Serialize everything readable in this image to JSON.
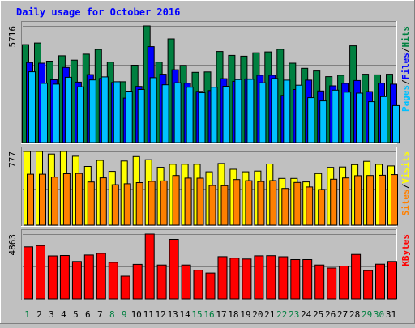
{
  "chart_data": [
    {
      "type": "bar",
      "title": "Daily usage for October 2016",
      "y_max_label": "5716",
      "y_max": 5716,
      "categories": [
        "1",
        "2",
        "3",
        "4",
        "5",
        "6",
        "7",
        "8",
        "9",
        "10",
        "11",
        "12",
        "13",
        "14",
        "15",
        "16",
        "17",
        "18",
        "19",
        "20",
        "21",
        "22",
        "23",
        "24",
        "25",
        "26",
        "27",
        "28",
        "29",
        "30",
        "31"
      ],
      "weekend_days": [
        "1",
        "8",
        "9",
        "15",
        "16",
        "22",
        "23",
        "29",
        "30"
      ],
      "legend": [
        {
          "label": "Pages",
          "color": "#00c0ff"
        },
        {
          "label": "/",
          "color": "#000000"
        },
        {
          "label": "Files",
          "color": "#0000ff"
        },
        {
          "label": "/",
          "color": "#000000"
        },
        {
          "label": "Hits",
          "color": "#008040"
        }
      ],
      "series": [
        {
          "name": "Hits",
          "color": "#008040",
          "values": [
            4800,
            4880,
            3990,
            4250,
            4040,
            4330,
            4560,
            3940,
            2980,
            3790,
            5716,
            3940,
            5080,
            3780,
            3440,
            3460,
            4460,
            4270,
            4230,
            4400,
            4440,
            4570,
            3890,
            3640,
            3510,
            3230,
            3300,
            4740,
            3350,
            3320,
            3350
          ]
        },
        {
          "name": "Files",
          "color": "#0000ff",
          "values": [
            3920,
            3890,
            3080,
            3680,
            2960,
            3330,
            3140,
            2940,
            2180,
            2750,
            4700,
            3350,
            3570,
            2910,
            2510,
            2550,
            3130,
            3000,
            3120,
            3300,
            3300,
            2310,
            2600,
            3060,
            2530,
            2780,
            2900,
            3040,
            2500,
            2910,
            2860
          ]
        },
        {
          "name": "Pages",
          "color": "#00c0ff",
          "values": [
            3470,
            2900,
            2860,
            3200,
            2730,
            3070,
            3220,
            2980,
            2520,
            2600,
            3180,
            2830,
            2930,
            2710,
            2440,
            2710,
            2760,
            3090,
            3100,
            2930,
            3140,
            3060,
            2810,
            2200,
            2040,
            2570,
            2470,
            2420,
            2000,
            2250,
            1810
          ]
        }
      ]
    },
    {
      "type": "bar",
      "y_max_label": "777",
      "y_max": 777,
      "categories": [
        "1",
        "2",
        "3",
        "4",
        "5",
        "6",
        "7",
        "8",
        "9",
        "10",
        "11",
        "12",
        "13",
        "14",
        "15",
        "16",
        "17",
        "18",
        "19",
        "20",
        "21",
        "22",
        "23",
        "24",
        "25",
        "26",
        "27",
        "28",
        "29",
        "30",
        "31"
      ],
      "legend": [
        {
          "label": "Sites",
          "color": "#ff8000"
        },
        {
          "label": "/",
          "color": "#000000"
        },
        {
          "label": "Visits",
          "color": "#ffff00"
        }
      ],
      "series": [
        {
          "name": "Visits",
          "color": "#ffff00",
          "values": [
            777,
            777,
            750,
            777,
            727,
            619,
            683,
            567,
            676,
            723,
            690,
            610,
            642,
            642,
            642,
            563,
            650,
            589,
            563,
            570,
            645,
            493,
            493,
            456,
            544,
            609,
            613,
            638,
            673,
            641,
            624
          ]
        },
        {
          "name": "Sites",
          "color": "#ff8000",
          "values": [
            537,
            537,
            506,
            542,
            546,
            455,
            499,
            426,
            436,
            448,
            462,
            466,
            523,
            496,
            495,
            418,
            416,
            481,
            469,
            460,
            470,
            387,
            450,
            402,
            376,
            484,
            498,
            522,
            523,
            526,
            533
          ]
        }
      ]
    },
    {
      "type": "bar",
      "y_max_label": "4863",
      "y_max": 4863,
      "categories": [
        "1",
        "2",
        "3",
        "4",
        "5",
        "6",
        "7",
        "8",
        "9",
        "10",
        "11",
        "12",
        "13",
        "14",
        "15",
        "16",
        "17",
        "18",
        "19",
        "20",
        "21",
        "22",
        "23",
        "24",
        "25",
        "26",
        "27",
        "28",
        "29",
        "30",
        "31"
      ],
      "legend": [
        {
          "label": "KBytes",
          "color": "#ff0000"
        }
      ],
      "series": [
        {
          "name": "KBytes",
          "color": "#ff0000",
          "values": [
            3900,
            4000,
            3220,
            3250,
            2810,
            3290,
            3410,
            2740,
            1700,
            2590,
            4863,
            2540,
            4470,
            2540,
            2150,
            1940,
            3170,
            3060,
            2990,
            3230,
            3240,
            3160,
            2950,
            2950,
            2540,
            2310,
            2460,
            3330,
            2120,
            2600,
            2810
          ]
        }
      ]
    }
  ]
}
